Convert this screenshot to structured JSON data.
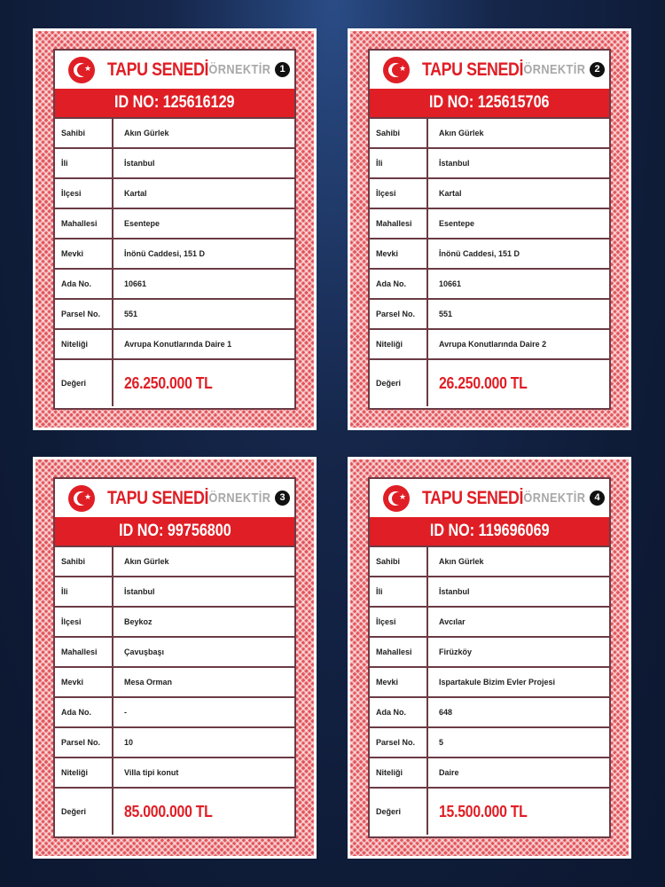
{
  "labels": [
    "Sahibi",
    "İli",
    "İlçesi",
    "Mahallesi",
    "Mevki",
    "Ada No.",
    "Parsel No.",
    "Niteliği",
    "Değeri"
  ],
  "title": "TAPU SENEDİ",
  "sample_label": "ÖRNEKTİR",
  "icon": "turkish-flag-icon",
  "colors": {
    "accent": "#e01e25",
    "background": "#13244a"
  },
  "cards": [
    {
      "number": "1",
      "id": "ID NO: 125616129",
      "values": [
        "Akın Gürlek",
        "İstanbul",
        "Kartal",
        "Esentepe",
        "İnönü Caddesi, 151 D",
        "10661",
        "551",
        "Avrupa Konutlarında Daire 1",
        "26.250.000 TL"
      ]
    },
    {
      "number": "2",
      "id": "ID NO: 125615706",
      "values": [
        "Akın Gürlek",
        "İstanbul",
        "Kartal",
        "Esentepe",
        "İnönü Caddesi, 151 D",
        "10661",
        "551",
        "Avrupa Konutlarında Daire 2",
        "26.250.000 TL"
      ]
    },
    {
      "number": "3",
      "id": "ID NO: 99756800",
      "values": [
        "Akın Gürlek",
        "İstanbul",
        "Beykoz",
        "Çavuşbaşı",
        "Mesa Orman",
        "-",
        "10",
        "Villa tipi konut",
        "85.000.000 TL"
      ]
    },
    {
      "number": "4",
      "id": "ID NO: 119696069",
      "values": [
        "Akın Gürlek",
        "İstanbul",
        "Avcılar",
        "Firüzköy",
        "Ispartakule Bizim Evler Projesi",
        "648",
        "5",
        "Daire",
        "15.500.000 TL"
      ]
    }
  ]
}
